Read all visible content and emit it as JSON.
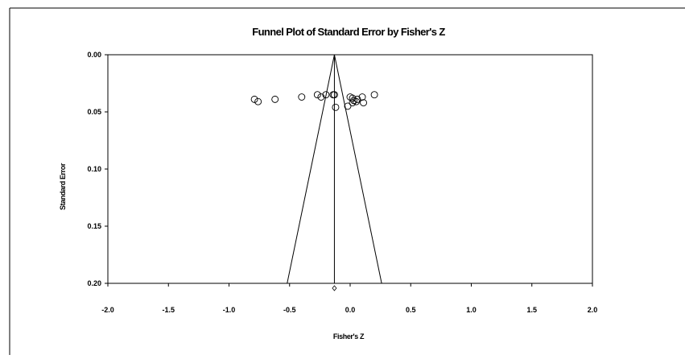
{
  "chart_data": {
    "type": "scatter",
    "title": "Funnel Plot of Standard Error by Fisher's Z",
    "xlabel": "Fisher's Z",
    "ylabel": "Standard Error",
    "xlim": [
      -2.0,
      2.0
    ],
    "ylim": [
      0.0,
      0.2
    ],
    "y_axis_inverted": true,
    "xticks": [
      "-2.0",
      "-1.5",
      "-1.0",
      "-0.5",
      "0.0",
      "0.5",
      "1.0",
      "1.5",
      "2.0"
    ],
    "yticks": [
      "0.00",
      "0.05",
      "0.10",
      "0.15",
      "0.20"
    ],
    "grid": false,
    "legend": "none",
    "marker": "open-circle",
    "summary_effect": -0.13,
    "summary_marker": "open-diamond",
    "funnel_lines": {
      "apex": [
        -0.13,
        0.0
      ],
      "base_left": [
        -0.52,
        0.2
      ],
      "base_right": [
        0.26,
        0.2
      ]
    },
    "points": [
      {
        "x": -0.79,
        "y": 0.039
      },
      {
        "x": -0.76,
        "y": 0.041
      },
      {
        "x": -0.62,
        "y": 0.039
      },
      {
        "x": -0.4,
        "y": 0.037
      },
      {
        "x": -0.27,
        "y": 0.035
      },
      {
        "x": -0.24,
        "y": 0.037
      },
      {
        "x": -0.2,
        "y": 0.035
      },
      {
        "x": -0.14,
        "y": 0.035
      },
      {
        "x": -0.13,
        "y": 0.035
      },
      {
        "x": -0.12,
        "y": 0.046
      },
      {
        "x": -0.02,
        "y": 0.045
      },
      {
        "x": 0.0,
        "y": 0.037
      },
      {
        "x": 0.02,
        "y": 0.038
      },
      {
        "x": 0.03,
        "y": 0.04
      },
      {
        "x": 0.02,
        "y": 0.042
      },
      {
        "x": 0.05,
        "y": 0.041
      },
      {
        "x": 0.06,
        "y": 0.039
      },
      {
        "x": 0.1,
        "y": 0.037
      },
      {
        "x": 0.11,
        "y": 0.042
      },
      {
        "x": 0.2,
        "y": 0.035
      }
    ]
  }
}
